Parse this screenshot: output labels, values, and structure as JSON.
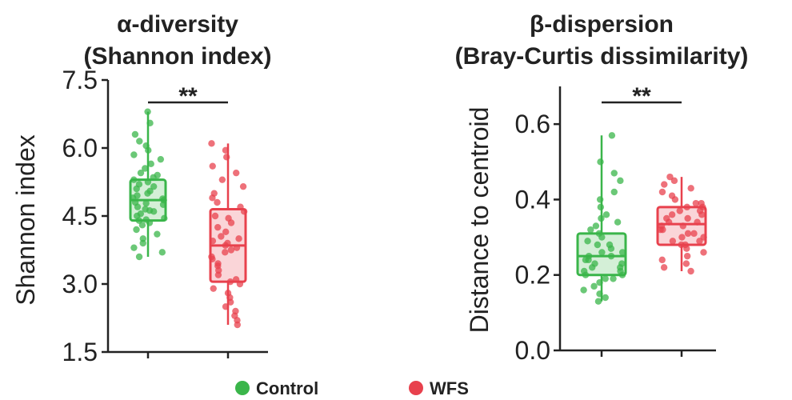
{
  "legend": [
    {
      "label": "Control",
      "color": "#3ab54a"
    },
    {
      "label": "WFS",
      "color": "#e8414d"
    }
  ],
  "chart_data": [
    {
      "type": "box",
      "title": "α-diversity",
      "subtitle": "(Shannon index)",
      "ylabel": "Shannon index",
      "xlabel": "",
      "ylim": [
        1.5,
        7.5
      ],
      "yticks": [
        1.5,
        3.0,
        4.5,
        6.0,
        7.5
      ],
      "ytick_labels": [
        "1.5",
        "3.0",
        "4.5",
        "6.0",
        "7.5"
      ],
      "significance": "**",
      "series": [
        {
          "name": "Control",
          "color": "#3ab54a",
          "box": {
            "min": 3.6,
            "q1": 4.4,
            "median": 4.85,
            "q3": 5.3,
            "max": 6.8
          },
          "points": [
            6.8,
            6.55,
            6.3,
            6.15,
            6.05,
            5.95,
            5.85,
            5.75,
            5.65,
            5.55,
            5.45,
            5.4,
            5.35,
            5.3,
            5.25,
            5.2,
            5.15,
            5.1,
            5.05,
            5.0,
            4.95,
            4.9,
            4.88,
            4.85,
            4.8,
            4.78,
            4.75,
            4.7,
            4.65,
            4.62,
            4.6,
            4.55,
            4.5,
            4.45,
            4.42,
            4.4,
            4.35,
            4.3,
            4.2,
            4.1,
            4.0,
            3.9,
            3.8,
            3.7,
            3.6
          ]
        },
        {
          "name": "WFS",
          "color": "#e8414d",
          "box": {
            "min": 2.1,
            "q1": 3.05,
            "median": 3.85,
            "q3": 4.65,
            "max": 6.1
          },
          "points": [
            6.1,
            5.95,
            5.8,
            5.6,
            5.45,
            5.3,
            5.15,
            5.0,
            4.9,
            4.8,
            4.7,
            4.6,
            4.5,
            4.45,
            4.35,
            4.25,
            4.15,
            4.05,
            4.0,
            3.95,
            3.9,
            3.85,
            3.8,
            3.75,
            3.7,
            3.6,
            3.55,
            3.45,
            3.4,
            3.3,
            3.2,
            3.1,
            3.05,
            3.0,
            2.9,
            2.8,
            2.7,
            2.6,
            2.5,
            2.4,
            2.3,
            2.2,
            2.1
          ]
        }
      ]
    },
    {
      "type": "box",
      "title": "β-dispersion",
      "subtitle": "(Bray-Curtis dissimilarity)",
      "ylabel": "Distance to centroid",
      "xlabel": "",
      "ylim": [
        0.0,
        0.7
      ],
      "yticks": [
        0.0,
        0.2,
        0.4,
        0.6
      ],
      "ytick_labels": [
        "0.0",
        "0.2",
        "0.4",
        "0.6"
      ],
      "significance": "**",
      "series": [
        {
          "name": "Control",
          "color": "#3ab54a",
          "box": {
            "min": 0.13,
            "q1": 0.2,
            "median": 0.25,
            "q3": 0.31,
            "max": 0.57
          },
          "points": [
            0.57,
            0.5,
            0.47,
            0.45,
            0.42,
            0.4,
            0.38,
            0.36,
            0.35,
            0.34,
            0.33,
            0.32,
            0.31,
            0.3,
            0.29,
            0.28,
            0.28,
            0.27,
            0.26,
            0.26,
            0.25,
            0.25,
            0.24,
            0.24,
            0.23,
            0.23,
            0.22,
            0.22,
            0.21,
            0.21,
            0.2,
            0.2,
            0.19,
            0.19,
            0.18,
            0.17,
            0.16,
            0.15,
            0.14,
            0.13
          ]
        },
        {
          "name": "WFS",
          "color": "#e8414d",
          "box": {
            "min": 0.21,
            "q1": 0.28,
            "median": 0.335,
            "q3": 0.38,
            "max": 0.46
          },
          "points": [
            0.46,
            0.45,
            0.44,
            0.43,
            0.42,
            0.41,
            0.4,
            0.39,
            0.39,
            0.38,
            0.38,
            0.37,
            0.37,
            0.36,
            0.36,
            0.35,
            0.35,
            0.34,
            0.34,
            0.33,
            0.33,
            0.32,
            0.32,
            0.31,
            0.31,
            0.3,
            0.3,
            0.29,
            0.29,
            0.28,
            0.28,
            0.27,
            0.26,
            0.25,
            0.24,
            0.23,
            0.22,
            0.21
          ]
        }
      ]
    }
  ]
}
